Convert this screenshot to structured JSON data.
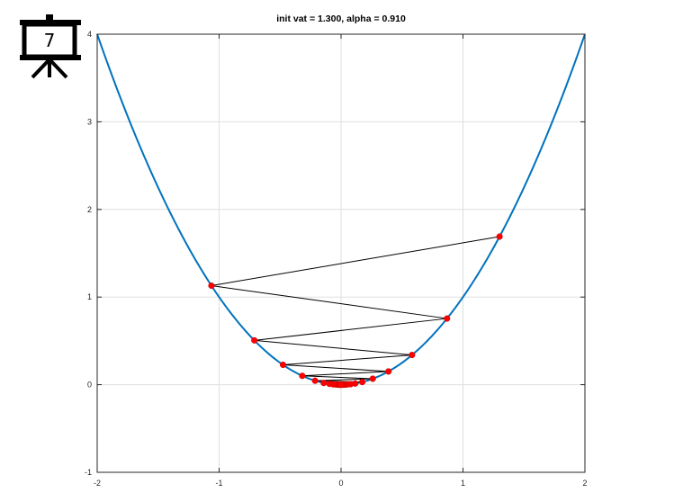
{
  "badge": {
    "slide_number": "7",
    "icon": "presentation-board-icon"
  },
  "chart_data": {
    "type": "line",
    "title": "init vat = 1.300, alpha = 0.910",
    "xlabel": "",
    "ylabel": "",
    "xlim": [
      -2,
      2
    ],
    "ylim": [
      -1,
      4
    ],
    "x_ticks": [
      "-2",
      "-1",
      "0",
      "1",
      "2"
    ],
    "y_ticks": [
      "-1",
      "0",
      "1",
      "2",
      "3",
      "4"
    ],
    "grid": true,
    "curve": {
      "function": "y = x^2",
      "x_range": [
        -2,
        2
      ],
      "color": "#0072BD"
    },
    "iterates": {
      "color": "#FF0000",
      "path_color": "#000000",
      "x": [
        1.3,
        -1.063,
        0.869,
        -0.711,
        0.582,
        -0.476,
        0.389,
        -0.318,
        0.26,
        -0.213,
        0.174,
        -0.142,
        0.116,
        -0.095,
        0.078,
        -0.064,
        0.052,
        -0.042,
        0.035,
        -0.028,
        0.023,
        -0.019,
        0.015,
        -0.012,
        0.01,
        -0.008,
        0.007,
        -0.005,
        0.004,
        -0.003
      ],
      "y": [
        1.69,
        1.13,
        0.755,
        0.506,
        0.339,
        0.227,
        0.151,
        0.101,
        0.068,
        0.045,
        0.03,
        0.02,
        0.013,
        0.009,
        0.006,
        0.004,
        0.003,
        0.002,
        0.001,
        0.001,
        0.001,
        0.0,
        0.0,
        0.0,
        0.0,
        0.0,
        0.0,
        0.0,
        0.0,
        0.0
      ]
    }
  }
}
